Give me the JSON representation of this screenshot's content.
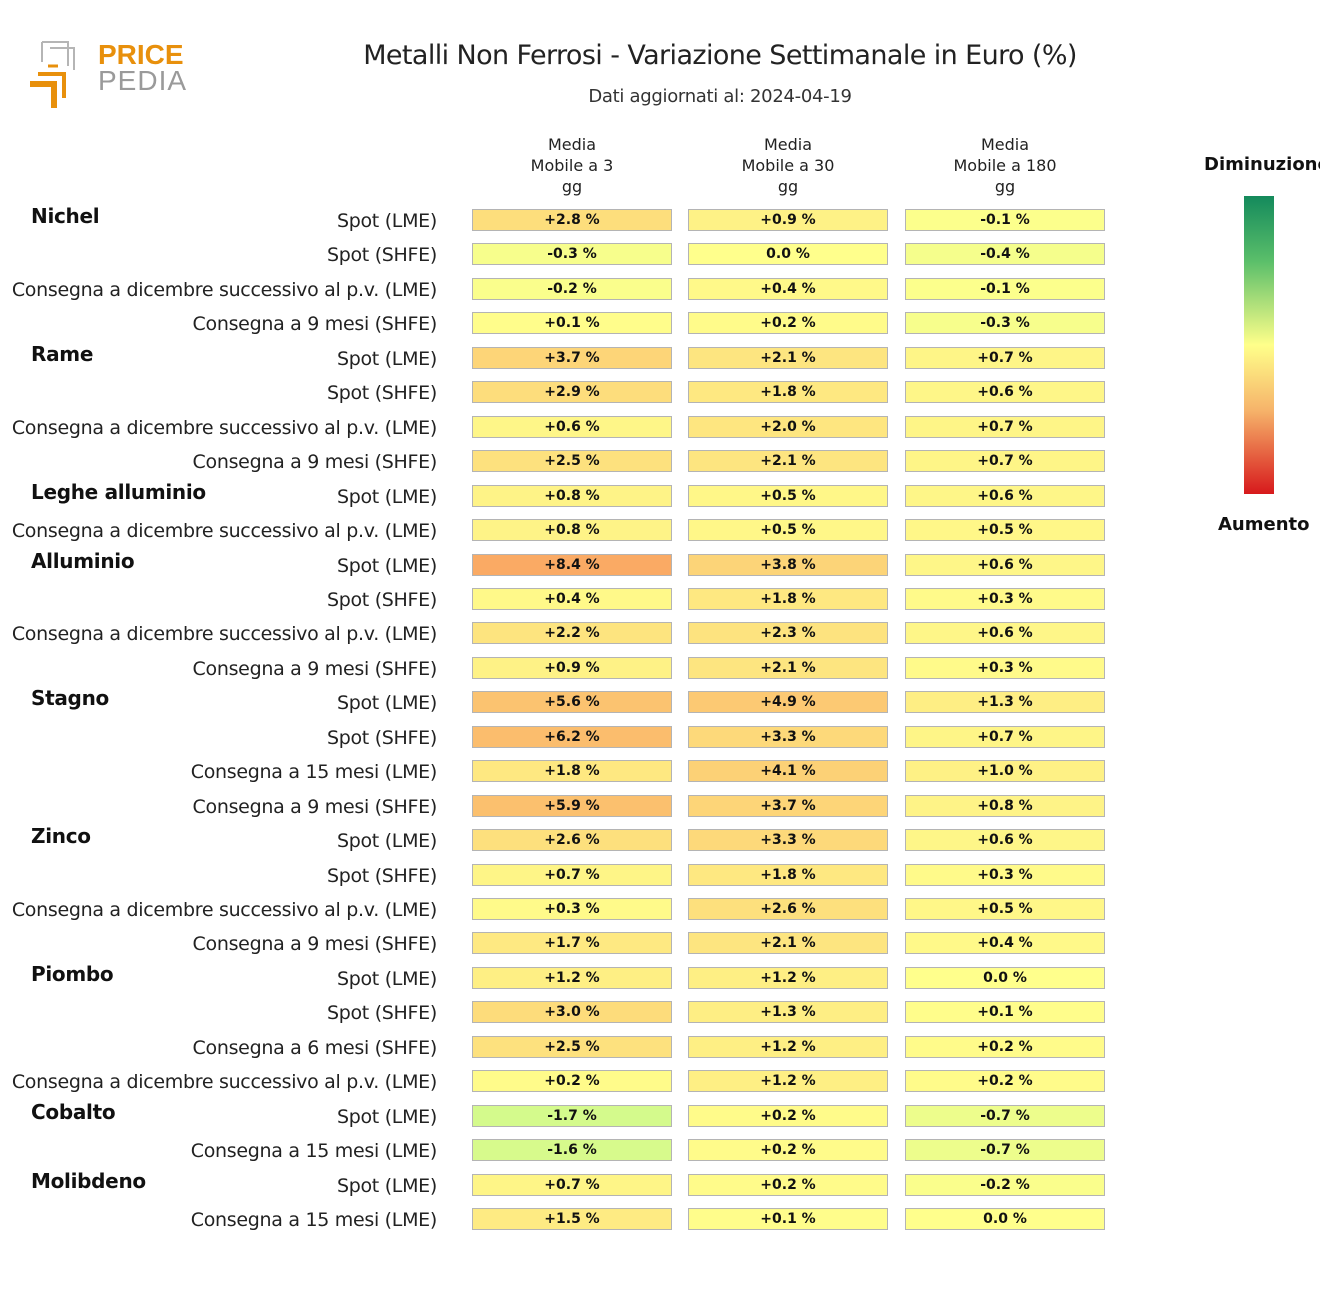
{
  "logo": {
    "text_top": "PRICE",
    "text_bottom": "PEDIA"
  },
  "title": "Metalli Non Ferrosi - Variazione Settimanale in Euro (%)",
  "subtitle": "Dati aggiornati al: 2024-04-19",
  "legend": {
    "top_label": "Diminuzione",
    "bottom_label": "Aumento",
    "colors": [
      "#148a5c",
      "#5bbf6a",
      "#ffff8a",
      "#f6b36a",
      "#d7191c"
    ]
  },
  "chart_data": {
    "type": "heatmap",
    "title": "Metalli Non Ferrosi - Variazione Settimanale in Euro (%)",
    "columns": [
      {
        "lines": [
          "Media",
          "Mobile a 3",
          "gg"
        ]
      },
      {
        "lines": [
          "Media",
          "Mobile a 30",
          "gg"
        ]
      },
      {
        "lines": [
          "Media",
          "Mobile a 180",
          "gg"
        ]
      }
    ],
    "groups": [
      {
        "name": "Nichel",
        "rows": [
          {
            "label": "Spot (LME)",
            "values": [
              2.8,
              0.9,
              -0.1
            ],
            "text": [
              "+2.8 %",
              "+0.9 %",
              "-0.1 %"
            ]
          },
          {
            "label": "Spot (SHFE)",
            "values": [
              -0.3,
              0.0,
              -0.4
            ],
            "text": [
              "-0.3 %",
              "0.0 %",
              "-0.4 %"
            ]
          },
          {
            "label": "Consegna a dicembre successivo al p.v. (LME)",
            "values": [
              -0.2,
              0.4,
              -0.1
            ],
            "text": [
              "-0.2 %",
              "+0.4 %",
              "-0.1 %"
            ]
          },
          {
            "label": "Consegna a 9 mesi (SHFE)",
            "values": [
              0.1,
              0.2,
              -0.3
            ],
            "text": [
              "+0.1 %",
              "+0.2 %",
              "-0.3 %"
            ]
          }
        ]
      },
      {
        "name": "Rame",
        "rows": [
          {
            "label": "Spot (LME)",
            "values": [
              3.7,
              2.1,
              0.7
            ],
            "text": [
              "+3.7 %",
              "+2.1 %",
              "+0.7 %"
            ]
          },
          {
            "label": "Spot (SHFE)",
            "values": [
              2.9,
              1.8,
              0.6
            ],
            "text": [
              "+2.9 %",
              "+1.8 %",
              "+0.6 %"
            ]
          },
          {
            "label": "Consegna a dicembre successivo al p.v. (LME)",
            "values": [
              0.6,
              2.0,
              0.7
            ],
            "text": [
              "+0.6 %",
              "+2.0 %",
              "+0.7 %"
            ]
          },
          {
            "label": "Consegna a 9 mesi (SHFE)",
            "values": [
              2.5,
              2.1,
              0.7
            ],
            "text": [
              "+2.5 %",
              "+2.1 %",
              "+0.7 %"
            ]
          }
        ]
      },
      {
        "name": "Leghe alluminio",
        "rows": [
          {
            "label": "Spot (LME)",
            "values": [
              0.8,
              0.5,
              0.6
            ],
            "text": [
              "+0.8 %",
              "+0.5 %",
              "+0.6 %"
            ]
          },
          {
            "label": "Consegna a dicembre successivo al p.v. (LME)",
            "values": [
              0.8,
              0.5,
              0.5
            ],
            "text": [
              "+0.8 %",
              "+0.5 %",
              "+0.5 %"
            ]
          }
        ]
      },
      {
        "name": "Alluminio",
        "rows": [
          {
            "label": "Spot (LME)",
            "values": [
              8.4,
              3.8,
              0.6
            ],
            "text": [
              "+8.4 %",
              "+3.8 %",
              "+0.6 %"
            ]
          },
          {
            "label": "Spot (SHFE)",
            "values": [
              0.4,
              1.8,
              0.3
            ],
            "text": [
              "+0.4 %",
              "+1.8 %",
              "+0.3 %"
            ]
          },
          {
            "label": "Consegna a dicembre successivo al p.v. (LME)",
            "values": [
              2.2,
              2.3,
              0.6
            ],
            "text": [
              "+2.2 %",
              "+2.3 %",
              "+0.6 %"
            ]
          },
          {
            "label": "Consegna a 9 mesi (SHFE)",
            "values": [
              0.9,
              2.1,
              0.3
            ],
            "text": [
              "+0.9 %",
              "+2.1 %",
              "+0.3 %"
            ]
          }
        ]
      },
      {
        "name": "Stagno",
        "rows": [
          {
            "label": "Spot (LME)",
            "values": [
              5.6,
              4.9,
              1.3
            ],
            "text": [
              "+5.6 %",
              "+4.9 %",
              "+1.3 %"
            ]
          },
          {
            "label": "Spot (SHFE)",
            "values": [
              6.2,
              3.3,
              0.7
            ],
            "text": [
              "+6.2 %",
              "+3.3 %",
              "+0.7 %"
            ]
          },
          {
            "label": "Consegna a 15 mesi (LME)",
            "values": [
              1.8,
              4.1,
              1.0
            ],
            "text": [
              "+1.8 %",
              "+4.1 %",
              "+1.0 %"
            ]
          },
          {
            "label": "Consegna a 9 mesi (SHFE)",
            "values": [
              5.9,
              3.7,
              0.8
            ],
            "text": [
              "+5.9 %",
              "+3.7 %",
              "+0.8 %"
            ]
          }
        ]
      },
      {
        "name": "Zinco",
        "rows": [
          {
            "label": "Spot (LME)",
            "values": [
              2.6,
              3.3,
              0.6
            ],
            "text": [
              "+2.6 %",
              "+3.3 %",
              "+0.6 %"
            ]
          },
          {
            "label": "Spot (SHFE)",
            "values": [
              0.7,
              1.8,
              0.3
            ],
            "text": [
              "+0.7 %",
              "+1.8 %",
              "+0.3 %"
            ]
          },
          {
            "label": "Consegna a dicembre successivo al p.v. (LME)",
            "values": [
              0.3,
              2.6,
              0.5
            ],
            "text": [
              "+0.3 %",
              "+2.6 %",
              "+0.5 %"
            ]
          },
          {
            "label": "Consegna a 9 mesi (SHFE)",
            "values": [
              1.7,
              2.1,
              0.4
            ],
            "text": [
              "+1.7 %",
              "+2.1 %",
              "+0.4 %"
            ]
          }
        ]
      },
      {
        "name": "Piombo",
        "rows": [
          {
            "label": "Spot (LME)",
            "values": [
              1.2,
              1.2,
              0.0
            ],
            "text": [
              "+1.2 %",
              "+1.2 %",
              "0.0 %"
            ]
          },
          {
            "label": "Spot (SHFE)",
            "values": [
              3.0,
              1.3,
              0.1
            ],
            "text": [
              "+3.0 %",
              "+1.3 %",
              "+0.1 %"
            ]
          },
          {
            "label": "Consegna a 6 mesi (SHFE)",
            "values": [
              2.5,
              1.2,
              0.2
            ],
            "text": [
              "+2.5 %",
              "+1.2 %",
              "+0.2 %"
            ]
          },
          {
            "label": "Consegna a dicembre successivo al p.v. (LME)",
            "values": [
              0.2,
              1.2,
              0.2
            ],
            "text": [
              "+0.2 %",
              "+1.2 %",
              "+0.2 %"
            ]
          }
        ]
      },
      {
        "name": "Cobalto",
        "rows": [
          {
            "label": "Spot (LME)",
            "values": [
              -1.7,
              0.2,
              -0.7
            ],
            "text": [
              "-1.7 %",
              "+0.2 %",
              "-0.7 %"
            ]
          },
          {
            "label": "Consegna a 15 mesi (LME)",
            "values": [
              -1.6,
              0.2,
              -0.7
            ],
            "text": [
              "-1.6 %",
              "+0.2 %",
              "-0.7 %"
            ]
          }
        ]
      },
      {
        "name": "Molibdeno",
        "rows": [
          {
            "label": "Spot (LME)",
            "values": [
              0.7,
              0.2,
              -0.2
            ],
            "text": [
              "+0.7 %",
              "+0.2 %",
              "-0.2 %"
            ]
          },
          {
            "label": "Consegna a 15 mesi (LME)",
            "values": [
              1.5,
              0.1,
              0.0
            ],
            "text": [
              "+1.5 %",
              "+0.1 %",
              "0.0 %"
            ]
          }
        ]
      }
    ]
  }
}
